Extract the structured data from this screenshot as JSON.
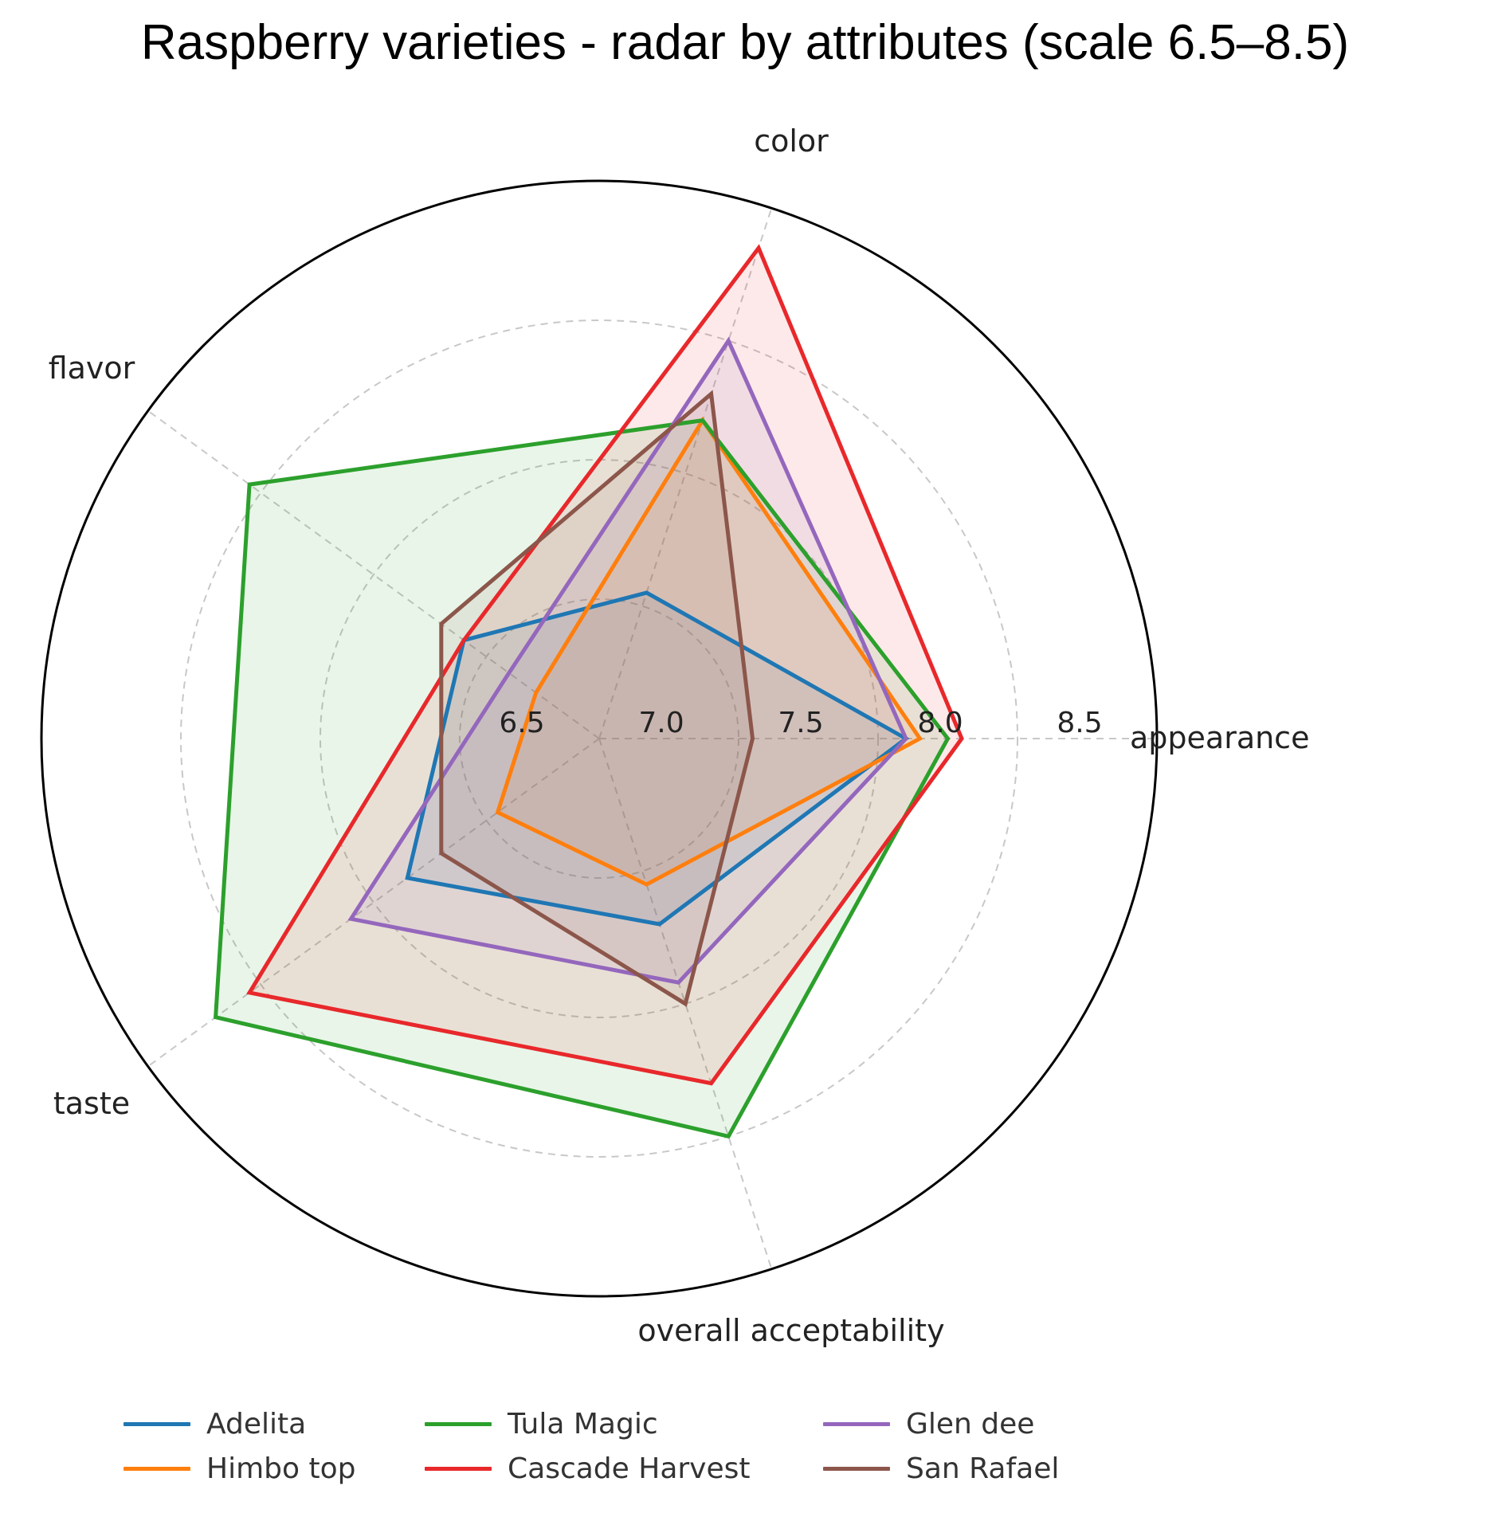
{
  "chart_data": {
    "type": "radar",
    "title": "Raspberry varieties - radar by attributes (scale 6.5–8.5)",
    "axes": [
      "appearance",
      "color",
      "flavor",
      "taste",
      "overall acceptability"
    ],
    "r_range": [
      6.5,
      8.5
    ],
    "r_ticks": [
      "6.5",
      "7.0",
      "7.5",
      "8.0",
      "8.5"
    ],
    "grid": true,
    "legend_position": "bottom",
    "series": [
      {
        "name": "Adelita",
        "color": "#1f77b4",
        "values": [
          7.6,
          7.05,
          7.1,
          7.35,
          7.2
        ]
      },
      {
        "name": "Himbo top",
        "color": "#ff7f0e",
        "values": [
          7.65,
          7.7,
          6.78,
          6.95,
          7.05
        ]
      },
      {
        "name": "Tula Magic",
        "color": "#2ca02c",
        "values": [
          7.75,
          7.7,
          8.05,
          8.2,
          8.0
        ]
      },
      {
        "name": "Cascade Harvest",
        "color": "#e8282b",
        "values": [
          7.8,
          8.35,
          7.1,
          8.05,
          7.8
        ]
      },
      {
        "name": "Glen dee",
        "color": "#9467bd",
        "values": [
          7.6,
          8.0,
          6.9,
          7.6,
          7.42
        ]
      },
      {
        "name": "San Rafael",
        "color": "#8c564b",
        "values": [
          7.05,
          7.8,
          7.2,
          7.2,
          7.5
        ]
      }
    ]
  }
}
